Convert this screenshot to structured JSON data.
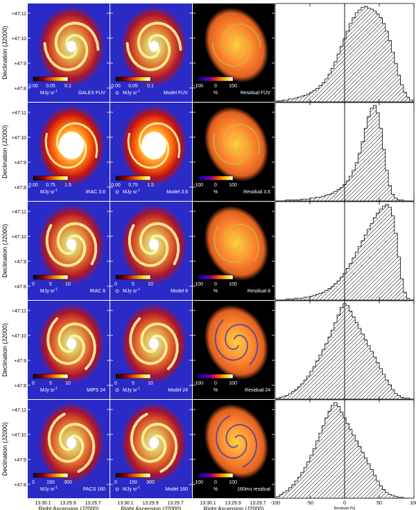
{
  "ylabel": "Declination (J2000)",
  "xlabel": "Right Ascension (J2000)",
  "hist_xlabel": "Residuals [%]",
  "dec_ticks": [
    "+47:11",
    "+47:10",
    "+47:9",
    "+47:8"
  ],
  "ra_ticks": [
    "13:30.1",
    "13:29.9",
    "13:29.7"
  ],
  "hist_ticks": [
    "-100",
    "-50",
    "0",
    "50",
    "100"
  ],
  "resid_scale": {
    "labels": [
      "-100",
      "0",
      "100"
    ],
    "unit": "%"
  },
  "rows": [
    {
      "obs_label": "GALEX FUV",
      "model_label": "Model FUV",
      "resid_label": "Residual FUV",
      "scale": [
        "0.00",
        "0.05",
        "0.1"
      ],
      "unit": "MJy sr",
      "hist": [
        1,
        1,
        2,
        2,
        3,
        3,
        4,
        5,
        6,
        7,
        8,
        10,
        12,
        14,
        17,
        20,
        24,
        29,
        35,
        42,
        50,
        58,
        66,
        74,
        82,
        88,
        93,
        96,
        99,
        100,
        98,
        97,
        95,
        92,
        88,
        82,
        74,
        64,
        52,
        40,
        28,
        18,
        10,
        5,
        2
      ]
    },
    {
      "obs_label": "IRAC 3.6",
      "model_label": "Model 3.6",
      "resid_label": "Residual 3.6",
      "scale": [
        "0.00",
        "0.75",
        "1.5"
      ],
      "unit": "MJy sr",
      "hist": [
        0,
        0,
        0,
        1,
        1,
        1,
        1,
        1,
        2,
        2,
        2,
        3,
        3,
        4,
        4,
        5,
        6,
        7,
        8,
        10,
        12,
        14,
        17,
        21,
        26,
        32,
        40,
        50,
        62,
        76,
        88,
        97,
        100,
        92,
        76,
        54,
        32,
        16,
        7,
        3,
        1,
        1,
        0,
        0,
        0
      ]
    },
    {
      "obs_label": "IRAC 8",
      "model_label": "Model 8",
      "resid_label": "Residual 8",
      "scale": [
        "0",
        "5",
        "10"
      ],
      "unit": "MJy sr",
      "hist": [
        0,
        0,
        0,
        1,
        1,
        1,
        2,
        2,
        2,
        3,
        3,
        4,
        5,
        6,
        7,
        8,
        10,
        12,
        14,
        17,
        20,
        24,
        28,
        33,
        38,
        44,
        50,
        56,
        62,
        68,
        74,
        80,
        86,
        91,
        95,
        98,
        100,
        97,
        88,
        70,
        45,
        22,
        8,
        2,
        0
      ]
    },
    {
      "obs_label": "MIPS 24",
      "model_label": "Model 24",
      "resid_label": "Residual 24",
      "scale": [
        "0",
        "5",
        "10"
      ],
      "unit": "MJy sr",
      "hist": [
        1,
        2,
        3,
        4,
        6,
        8,
        10,
        13,
        16,
        20,
        24,
        29,
        34,
        40,
        46,
        52,
        58,
        65,
        72,
        80,
        88,
        96,
        100,
        98,
        92,
        86,
        80,
        74,
        68,
        62,
        56,
        50,
        44,
        38,
        32,
        26,
        20,
        15,
        10,
        6,
        4,
        2,
        1,
        1,
        0
      ]
    },
    {
      "obs_label": "PACS 160",
      "model_label": "Model 160",
      "resid_label": "160mu residual",
      "scale": [
        "0",
        "150",
        "300"
      ],
      "unit": "MJy sr",
      "hist": [
        2,
        4,
        6,
        8,
        11,
        14,
        18,
        22,
        27,
        32,
        38,
        45,
        52,
        60,
        68,
        76,
        84,
        91,
        97,
        100,
        96,
        90,
        84,
        78,
        72,
        66,
        60,
        54,
        48,
        42,
        36,
        30,
        24,
        18,
        13,
        9,
        6,
        4,
        3,
        2,
        1,
        1,
        0,
        0,
        0
      ]
    }
  ],
  "colors": {
    "sky": "#2a2ac6",
    "resid_bg": "#000000"
  }
}
